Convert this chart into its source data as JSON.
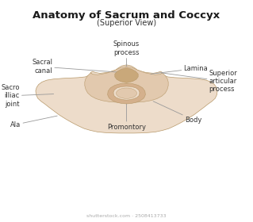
{
  "title": "Anatomy of Sacrum and Coccyx",
  "subtitle": "(Superior View)",
  "background_color": "#ffffff",
  "title_fontsize": 9.5,
  "subtitle_fontsize": 7,
  "label_fontsize": 6,
  "watermark": "shutterstock.com · 2508413733",
  "colors": {
    "outer_light": "#eddcca",
    "outer_mid": "#e2c9ae",
    "inner_mid": "#d4b08c",
    "inner_dark": "#c9a87a",
    "outline": "#b8996a",
    "line_color": "#999999"
  }
}
